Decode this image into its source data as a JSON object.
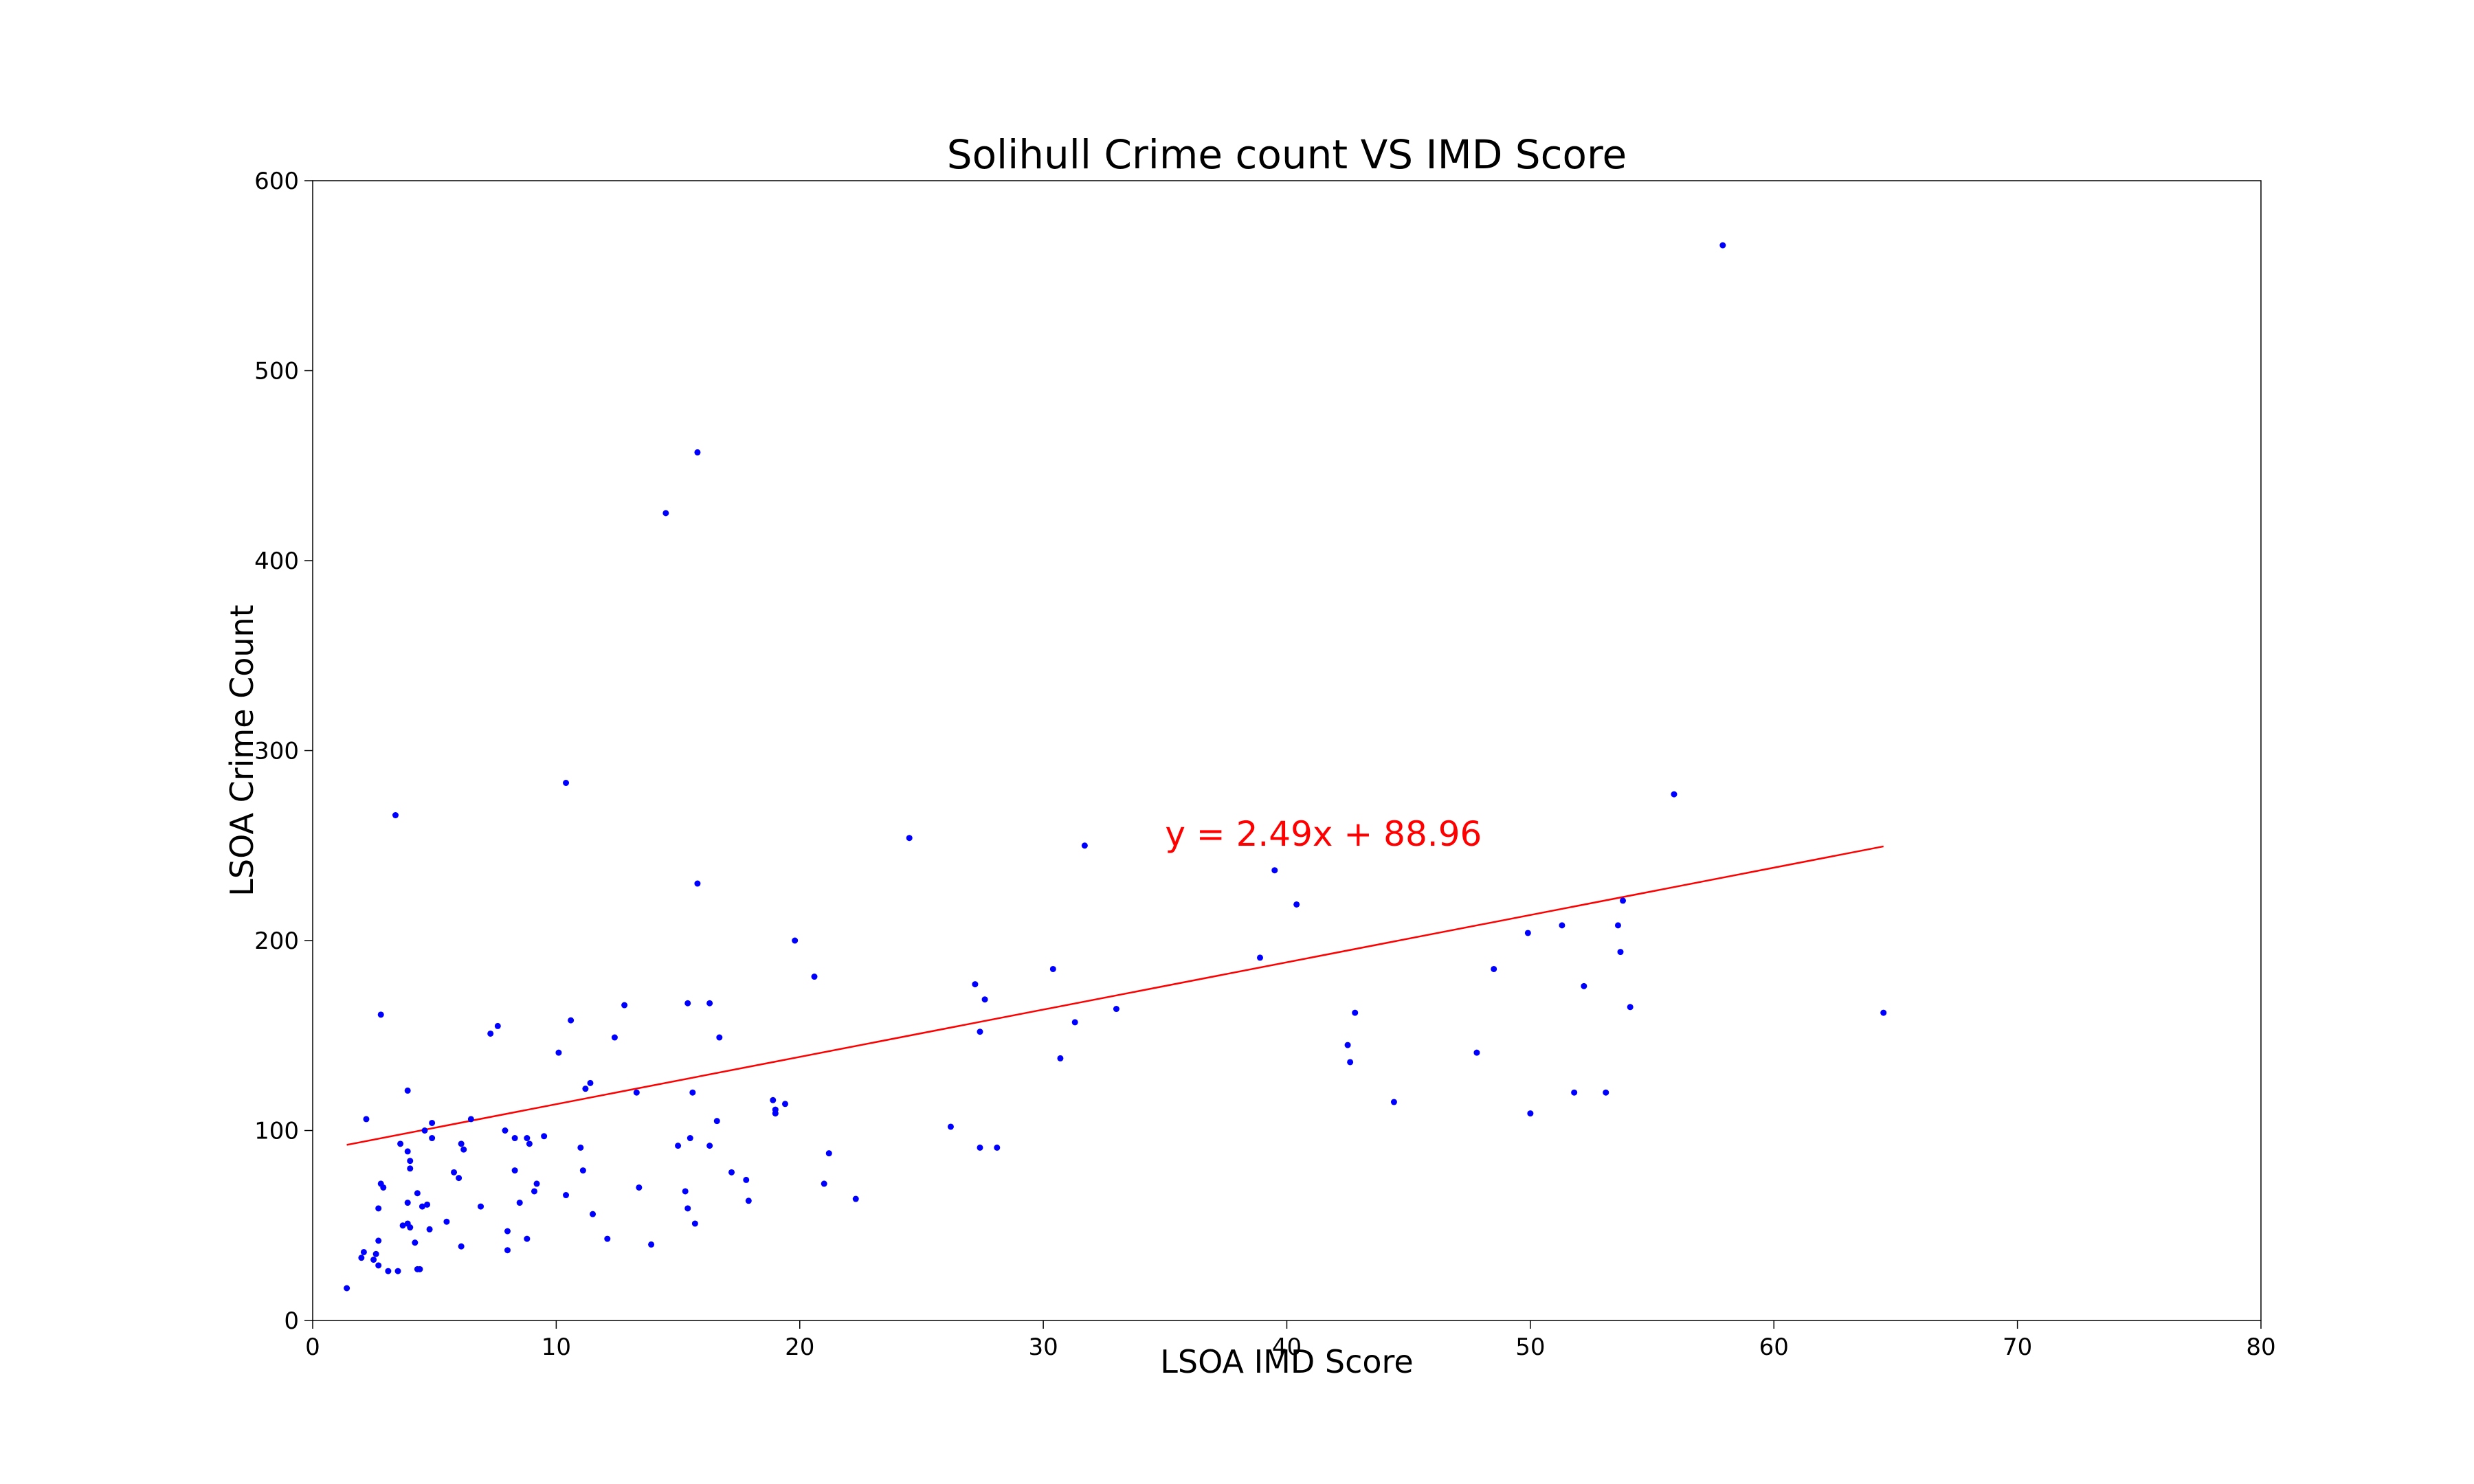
{
  "chart_data": {
    "type": "scatter",
    "title": "Solihull Crime count VS IMD Score",
    "xlabel": "LSOA IMD Score",
    "ylabel": "LSOA Crime Count",
    "xlim": [
      0,
      80
    ],
    "ylim": [
      0,
      600
    ],
    "xticks": [
      0,
      10,
      20,
      30,
      40,
      50,
      60,
      70,
      80
    ],
    "yticks": [
      0,
      100,
      200,
      300,
      400,
      500,
      600
    ],
    "grid": false,
    "point_color": "#0000ff",
    "trend_color": "#ff0000",
    "trendline": {
      "label": "y = 2.49x + 88.96",
      "slope": 2.49,
      "intercept": 88.96,
      "x_range": [
        1.4,
        64.5
      ]
    },
    "points": [
      [
        1.4,
        17
      ],
      [
        2.0,
        33
      ],
      [
        2.1,
        36
      ],
      [
        2.2,
        106
      ],
      [
        2.5,
        32
      ],
      [
        2.6,
        35
      ],
      [
        2.7,
        59
      ],
      [
        2.7,
        42
      ],
      [
        2.7,
        29
      ],
      [
        2.8,
        72
      ],
      [
        2.8,
        161
      ],
      [
        2.9,
        70
      ],
      [
        3.1,
        26
      ],
      [
        3.4,
        266
      ],
      [
        3.5,
        26
      ],
      [
        3.6,
        93
      ],
      [
        3.7,
        50
      ],
      [
        3.9,
        89
      ],
      [
        3.9,
        62
      ],
      [
        3.9,
        51
      ],
      [
        3.9,
        121
      ],
      [
        4.0,
        84
      ],
      [
        4.0,
        80
      ],
      [
        4.0,
        49
      ],
      [
        4.2,
        41
      ],
      [
        4.3,
        27
      ],
      [
        4.3,
        67
      ],
      [
        4.4,
        27
      ],
      [
        4.5,
        60
      ],
      [
        4.6,
        100
      ],
      [
        4.7,
        61
      ],
      [
        4.8,
        48
      ],
      [
        4.9,
        96
      ],
      [
        4.9,
        104
      ],
      [
        5.5,
        52
      ],
      [
        5.8,
        78
      ],
      [
        6.0,
        75
      ],
      [
        6.1,
        93
      ],
      [
        6.1,
        39
      ],
      [
        6.2,
        90
      ],
      [
        6.5,
        106
      ],
      [
        6.9,
        60
      ],
      [
        7.3,
        151
      ],
      [
        7.6,
        155
      ],
      [
        7.9,
        100
      ],
      [
        8.0,
        47
      ],
      [
        8.0,
        37
      ],
      [
        8.3,
        96
      ],
      [
        8.3,
        79
      ],
      [
        8.5,
        62
      ],
      [
        8.8,
        43
      ],
      [
        8.8,
        96
      ],
      [
        8.9,
        93
      ],
      [
        9.1,
        68
      ],
      [
        9.2,
        72
      ],
      [
        9.5,
        97
      ],
      [
        10.1,
        141
      ],
      [
        10.4,
        66
      ],
      [
        10.4,
        283
      ],
      [
        10.6,
        158
      ],
      [
        11.0,
        91
      ],
      [
        11.1,
        79
      ],
      [
        11.2,
        122
      ],
      [
        11.4,
        125
      ],
      [
        11.5,
        56
      ],
      [
        12.1,
        43
      ],
      [
        12.4,
        149
      ],
      [
        12.8,
        166
      ],
      [
        13.3,
        120
      ],
      [
        13.4,
        70
      ],
      [
        13.9,
        40
      ],
      [
        14.5,
        425
      ],
      [
        15.0,
        92
      ],
      [
        15.3,
        68
      ],
      [
        15.4,
        59
      ],
      [
        15.4,
        167
      ],
      [
        15.5,
        96
      ],
      [
        15.6,
        120
      ],
      [
        15.7,
        51
      ],
      [
        15.8,
        457
      ],
      [
        15.8,
        230
      ],
      [
        16.3,
        92
      ],
      [
        16.3,
        167
      ],
      [
        16.6,
        105
      ],
      [
        16.7,
        149
      ],
      [
        17.2,
        78
      ],
      [
        17.8,
        74
      ],
      [
        17.9,
        63
      ],
      [
        18.9,
        116
      ],
      [
        19.0,
        109
      ],
      [
        19.0,
        111
      ],
      [
        19.4,
        114
      ],
      [
        19.8,
        200
      ],
      [
        20.6,
        181
      ],
      [
        21.0,
        72
      ],
      [
        21.2,
        88
      ],
      [
        22.3,
        64
      ],
      [
        24.5,
        254
      ],
      [
        26.2,
        102
      ],
      [
        27.2,
        177
      ],
      [
        27.4,
        152
      ],
      [
        27.4,
        91
      ],
      [
        27.6,
        169
      ],
      [
        28.1,
        91
      ],
      [
        30.4,
        185
      ],
      [
        30.7,
        138
      ],
      [
        31.3,
        157
      ],
      [
        31.7,
        250
      ],
      [
        33.0,
        164
      ],
      [
        38.9,
        191
      ],
      [
        39.5,
        237
      ],
      [
        40.4,
        219
      ],
      [
        42.5,
        145
      ],
      [
        42.6,
        136
      ],
      [
        42.8,
        162
      ],
      [
        44.4,
        115
      ],
      [
        47.8,
        141
      ],
      [
        48.5,
        185
      ],
      [
        49.9,
        204
      ],
      [
        50.0,
        109
      ],
      [
        51.3,
        208
      ],
      [
        51.8,
        120
      ],
      [
        52.2,
        176
      ],
      [
        53.1,
        120
      ],
      [
        53.6,
        208
      ],
      [
        53.7,
        194
      ],
      [
        53.8,
        221
      ],
      [
        54.1,
        165
      ],
      [
        55.9,
        277
      ],
      [
        57.9,
        566
      ],
      [
        64.5,
        162
      ]
    ]
  }
}
